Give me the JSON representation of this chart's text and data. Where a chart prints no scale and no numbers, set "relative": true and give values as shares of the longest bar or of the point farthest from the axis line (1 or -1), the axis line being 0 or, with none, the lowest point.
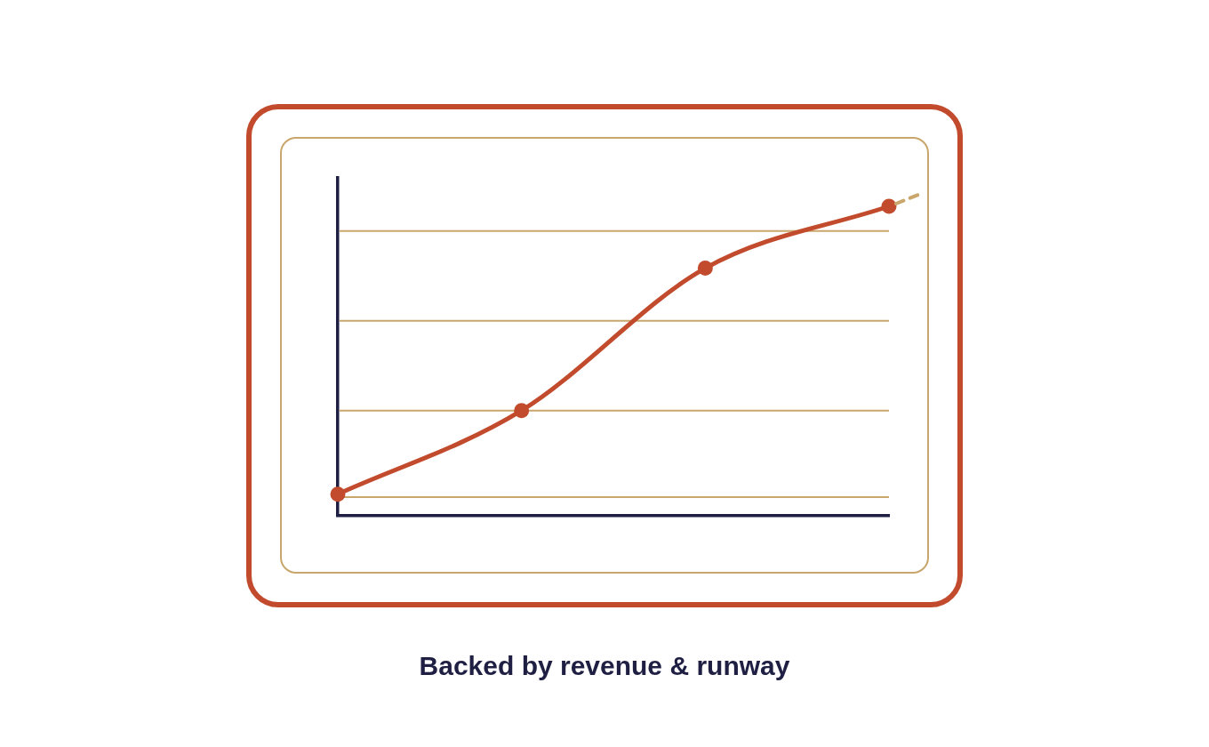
{
  "chart_data": {
    "type": "line",
    "title": "Backed by revenue & runway",
    "categories": [
      null,
      null,
      null,
      null
    ],
    "series": [
      {
        "color": "#c24b2d",
        "values": [
          0.07,
          0.34,
          0.8,
          1
        ]
      }
    ],
    "ref_lines": [
      {
        "axis": "y",
        "value": 0.06,
        "color": "#c9a66b"
      },
      {
        "axis": "y",
        "value": 0.34,
        "color": "#c9a66b"
      },
      {
        "axis": "y",
        "value": 0.63,
        "color": "#c9a66b"
      },
      {
        "axis": "y",
        "value": 0.92,
        "color": "#c9a66b"
      }
    ],
    "relative": true,
    "marker": "circle",
    "line_style": "solid"
  }
}
